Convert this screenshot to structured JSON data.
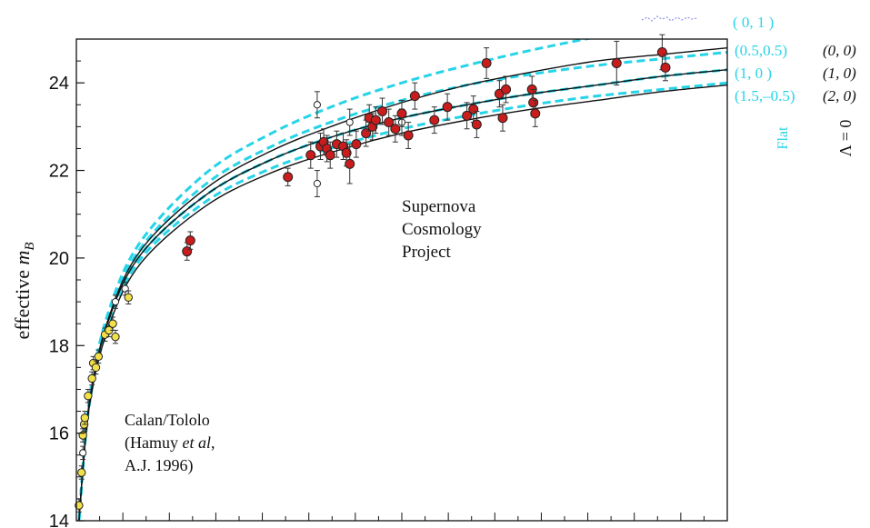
{
  "chart_data": {
    "type": "scatter",
    "ylabel_prefix": "effective ",
    "ylabel_var": "m",
    "ylabel_sub": "B",
    "ylim": [
      14,
      25
    ],
    "yticks": [
      14,
      16,
      18,
      20,
      22,
      24
    ],
    "xlim": [
      0,
      1
    ],
    "grid": false,
    "annotation_main": [
      "Supernova",
      "Cosmology",
      "Project"
    ],
    "annotation_calan": [
      "Calan/Tololo",
      "(Hamuy ",
      "et al",
      ",",
      "A.J. 1996)"
    ],
    "legend_flat_title": "Flat",
    "legend_lambda_title": "Λ = 0",
    "legend_flat": [
      "( 0,   1 )",
      "(0.5,0.5)",
      "(1,   0 )",
      "(1.5,–0.5)"
    ],
    "legend_lambda": [
      "(0, 0)",
      "(1, 0)",
      "(2, 0)"
    ],
    "curves": [
      {
        "style": "dashed",
        "color": "#26d4e8",
        "group": "flat",
        "label": "( 0,   1 )",
        "x": [
          0.004,
          0.02,
          0.05,
          0.1,
          0.2,
          0.3,
          0.4,
          0.5,
          0.6,
          0.7,
          0.8,
          0.9,
          1.0
        ],
        "y": [
          14.0,
          16.8,
          18.8,
          20.4,
          21.95,
          22.85,
          23.5,
          24.0,
          24.4,
          24.75,
          25.05,
          25.3,
          25.5
        ]
      },
      {
        "style": "dashed",
        "color": "#26d4e8",
        "group": "flat",
        "label": "(0.5,0.5)",
        "x": [
          0.004,
          0.02,
          0.05,
          0.1,
          0.2,
          0.3,
          0.4,
          0.5,
          0.6,
          0.7,
          0.8,
          0.9,
          1.0
        ],
        "y": [
          14.0,
          16.75,
          18.7,
          20.25,
          21.7,
          22.55,
          23.15,
          23.6,
          23.95,
          24.2,
          24.4,
          24.55,
          24.7
        ]
      },
      {
        "style": "dashed",
        "color": "#26d4e8",
        "group": "flat",
        "label": "(1,   0 )",
        "x": [
          0.004,
          0.02,
          0.05,
          0.1,
          0.2,
          0.3,
          0.4,
          0.5,
          0.6,
          0.7,
          0.8,
          0.9,
          1.0
        ],
        "y": [
          14.0,
          16.7,
          18.6,
          20.1,
          21.45,
          22.25,
          22.8,
          23.2,
          23.5,
          23.75,
          23.95,
          24.15,
          24.3
        ]
      },
      {
        "style": "dashed",
        "color": "#26d4e8",
        "group": "flat",
        "label": "(1.5,–0.5)",
        "x": [
          0.004,
          0.02,
          0.05,
          0.1,
          0.2,
          0.3,
          0.4,
          0.5,
          0.6,
          0.7,
          0.8,
          0.9,
          1.0
        ],
        "y": [
          14.0,
          16.65,
          18.5,
          20.0,
          21.3,
          22.05,
          22.55,
          22.95,
          23.25,
          23.5,
          23.7,
          23.85,
          24.0
        ]
      },
      {
        "style": "solid",
        "color": "#111111",
        "group": "lambda0",
        "label": "(0, 0)",
        "x": [
          0.004,
          0.02,
          0.05,
          0.1,
          0.2,
          0.3,
          0.4,
          0.5,
          0.6,
          0.7,
          0.8,
          0.9,
          1.0
        ],
        "y": [
          14.0,
          16.72,
          18.65,
          20.2,
          21.6,
          22.45,
          23.05,
          23.55,
          23.95,
          24.25,
          24.5,
          24.65,
          24.8
        ]
      },
      {
        "style": "solid",
        "color": "#111111",
        "group": "lambda0",
        "label": "(1, 0)",
        "x": [
          0.004,
          0.02,
          0.05,
          0.1,
          0.2,
          0.3,
          0.4,
          0.5,
          0.6,
          0.7,
          0.8,
          0.9,
          1.0
        ],
        "y": [
          14.0,
          16.7,
          18.6,
          20.1,
          21.45,
          22.25,
          22.8,
          23.2,
          23.5,
          23.75,
          23.95,
          24.15,
          24.3
        ]
      },
      {
        "style": "solid",
        "color": "#111111",
        "group": "lambda0",
        "label": "(2, 0)",
        "x": [
          0.004,
          0.02,
          0.05,
          0.1,
          0.2,
          0.3,
          0.4,
          0.5,
          0.6,
          0.7,
          0.8,
          0.9,
          1.0
        ],
        "y": [
          14.0,
          16.62,
          18.45,
          19.9,
          21.2,
          21.95,
          22.45,
          22.85,
          23.15,
          23.4,
          23.6,
          23.8,
          23.95
        ]
      }
    ],
    "points_calan": [
      {
        "x": 0.004,
        "y": 14.35,
        "e": 0.15
      },
      {
        "x": 0.008,
        "y": 15.1,
        "e": 0.15
      },
      {
        "x": 0.01,
        "y": 15.95,
        "e": 0.15
      },
      {
        "x": 0.012,
        "y": 16.2,
        "e": 0.15
      },
      {
        "x": 0.013,
        "y": 16.35,
        "e": 0.15
      },
      {
        "x": 0.018,
        "y": 16.85,
        "e": 0.15
      },
      {
        "x": 0.024,
        "y": 17.25,
        "e": 0.15
      },
      {
        "x": 0.026,
        "y": 17.6,
        "e": 0.15
      },
      {
        "x": 0.03,
        "y": 17.5,
        "e": 0.15
      },
      {
        "x": 0.034,
        "y": 17.75,
        "e": 0.15
      },
      {
        "x": 0.044,
        "y": 18.25,
        "e": 0.15
      },
      {
        "x": 0.05,
        "y": 18.35,
        "e": 0.15
      },
      {
        "x": 0.056,
        "y": 18.5,
        "e": 0.15
      },
      {
        "x": 0.06,
        "y": 18.2,
        "e": 0.15
      },
      {
        "x": 0.08,
        "y": 19.1,
        "e": 0.15
      }
    ],
    "points_scp": [
      {
        "x": 0.17,
        "y": 20.15,
        "e": 0.2
      },
      {
        "x": 0.175,
        "y": 20.4,
        "e": 0.2
      },
      {
        "x": 0.325,
        "y": 21.85,
        "e": 0.2
      },
      {
        "x": 0.36,
        "y": 22.35,
        "e": 0.3
      },
      {
        "x": 0.375,
        "y": 22.55,
        "e": 0.3
      },
      {
        "x": 0.38,
        "y": 22.65,
        "e": 0.3
      },
      {
        "x": 0.385,
        "y": 22.5,
        "e": 0.3
      },
      {
        "x": 0.39,
        "y": 22.35,
        "e": 0.3
      },
      {
        "x": 0.4,
        "y": 22.6,
        "e": 0.3
      },
      {
        "x": 0.41,
        "y": 22.55,
        "e": 0.3
      },
      {
        "x": 0.415,
        "y": 22.4,
        "e": 0.3
      },
      {
        "x": 0.42,
        "y": 22.15,
        "e": 0.45
      },
      {
        "x": 0.43,
        "y": 22.6,
        "e": 0.3
      },
      {
        "x": 0.445,
        "y": 22.85,
        "e": 0.3
      },
      {
        "x": 0.45,
        "y": 23.2,
        "e": 0.3
      },
      {
        "x": 0.455,
        "y": 23.0,
        "e": 0.3
      },
      {
        "x": 0.46,
        "y": 23.15,
        "e": 0.3
      },
      {
        "x": 0.47,
        "y": 23.35,
        "e": 0.3
      },
      {
        "x": 0.48,
        "y": 23.1,
        "e": 0.3
      },
      {
        "x": 0.49,
        "y": 22.95,
        "e": 0.3
      },
      {
        "x": 0.5,
        "y": 23.3,
        "e": 0.3
      },
      {
        "x": 0.51,
        "y": 22.8,
        "e": 0.3
      },
      {
        "x": 0.52,
        "y": 23.7,
        "e": 0.3
      },
      {
        "x": 0.55,
        "y": 23.15,
        "e": 0.3
      },
      {
        "x": 0.57,
        "y": 23.45,
        "e": 0.3
      },
      {
        "x": 0.6,
        "y": 23.25,
        "e": 0.3
      },
      {
        "x": 0.61,
        "y": 23.4,
        "e": 0.3
      },
      {
        "x": 0.615,
        "y": 23.05,
        "e": 0.3
      },
      {
        "x": 0.63,
        "y": 24.45,
        "e": 0.35
      },
      {
        "x": 0.65,
        "y": 23.75,
        "e": 0.3
      },
      {
        "x": 0.66,
        "y": 23.85,
        "e": 0.3
      },
      {
        "x": 0.655,
        "y": 23.2,
        "e": 0.3
      },
      {
        "x": 0.7,
        "y": 23.85,
        "e": 0.3
      },
      {
        "x": 0.702,
        "y": 23.55,
        "e": 0.3
      },
      {
        "x": 0.705,
        "y": 23.3,
        "e": 0.3
      },
      {
        "x": 0.83,
        "y": 24.45,
        "e": 0.5
      },
      {
        "x": 0.9,
        "y": 24.7,
        "e": 0.4
      },
      {
        "x": 0.905,
        "y": 24.35,
        "e": 0.3
      }
    ],
    "points_open": [
      {
        "x": 0.01,
        "y": 15.55,
        "e": 0.15
      },
      {
        "x": 0.06,
        "y": 19.0,
        "e": 0.15
      },
      {
        "x": 0.075,
        "y": 19.3,
        "e": 0.15
      },
      {
        "x": 0.37,
        "y": 23.5,
        "e": 0.3
      },
      {
        "x": 0.37,
        "y": 21.7,
        "e": 0.3
      },
      {
        "x": 0.42,
        "y": 23.1,
        "e": 0.3
      },
      {
        "x": 0.5,
        "y": 23.1,
        "e": 0.3
      }
    ]
  }
}
